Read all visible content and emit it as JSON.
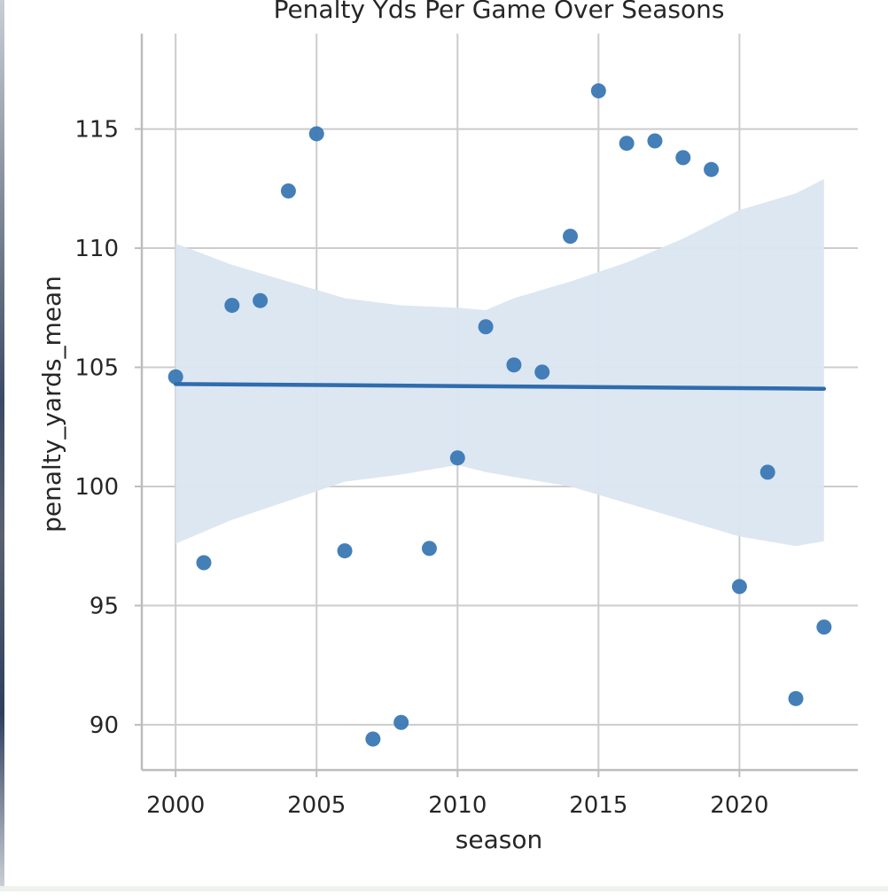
{
  "chart_data": {
    "type": "scatter",
    "title": "Penalty Yds Per Game Over Seasons",
    "xlabel": "season",
    "ylabel": "penalty_yards_mean",
    "xlim": [
      1998.8,
      2024.2
    ],
    "ylim": [
      88.1,
      119.0
    ],
    "x_ticks": [
      2000,
      2005,
      2010,
      2015,
      2020
    ],
    "y_ticks": [
      90,
      95,
      100,
      105,
      110,
      115
    ],
    "grid": true,
    "colors": {
      "points": "#3a78b4",
      "line": "#2f6cad",
      "band": "#dbe6f1",
      "grid": "#cccccc",
      "spine": "#bdbdbd"
    },
    "points": [
      {
        "x": 2000,
        "y": 104.6
      },
      {
        "x": 2001,
        "y": 96.8
      },
      {
        "x": 2002,
        "y": 107.6
      },
      {
        "x": 2003,
        "y": 107.8
      },
      {
        "x": 2004,
        "y": 112.4
      },
      {
        "x": 2005,
        "y": 114.8
      },
      {
        "x": 2006,
        "y": 97.3
      },
      {
        "x": 2007,
        "y": 89.4
      },
      {
        "x": 2008,
        "y": 90.1
      },
      {
        "x": 2009,
        "y": 97.4
      },
      {
        "x": 2010,
        "y": 101.2
      },
      {
        "x": 2011,
        "y": 106.7
      },
      {
        "x": 2012,
        "y": 105.1
      },
      {
        "x": 2013,
        "y": 104.8
      },
      {
        "x": 2014,
        "y": 110.5
      },
      {
        "x": 2015,
        "y": 116.6
      },
      {
        "x": 2016,
        "y": 114.4
      },
      {
        "x": 2017,
        "y": 114.5
      },
      {
        "x": 2018,
        "y": 113.8
      },
      {
        "x": 2019,
        "y": 113.3
      },
      {
        "x": 2020,
        "y": 95.8
      },
      {
        "x": 2021,
        "y": 100.6
      },
      {
        "x": 2022,
        "y": 91.1
      },
      {
        "x": 2023,
        "y": 94.1
      }
    ],
    "regression": {
      "x": [
        2000,
        2023
      ],
      "y": [
        104.3,
        104.1
      ]
    },
    "confidence_band": {
      "x": [
        2000,
        2002,
        2004,
        2006,
        2008,
        2010,
        2011,
        2012,
        2014,
        2016,
        2018,
        2020,
        2022,
        2023
      ],
      "upper": [
        110.2,
        109.3,
        108.6,
        107.9,
        107.6,
        107.5,
        107.4,
        107.9,
        108.6,
        109.4,
        110.4,
        111.6,
        112.3,
        112.9
      ],
      "lower": [
        97.6,
        98.6,
        99.4,
        100.2,
        100.5,
        100.9,
        100.6,
        100.4,
        100.0,
        99.3,
        98.6,
        97.9,
        97.5,
        97.7
      ]
    }
  }
}
